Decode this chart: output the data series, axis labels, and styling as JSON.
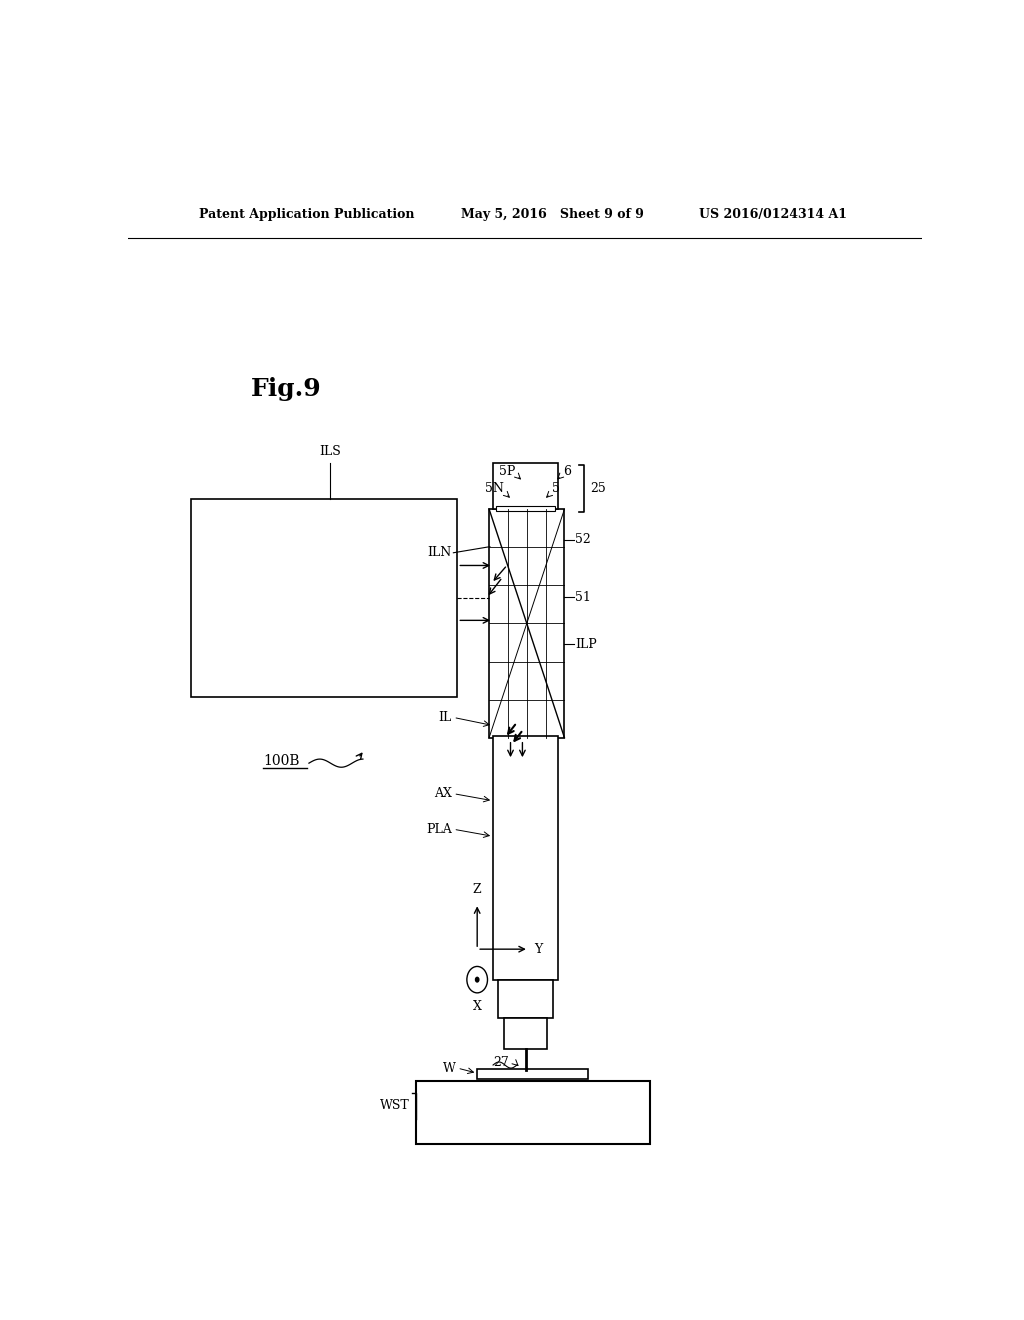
{
  "bg_color": "#ffffff",
  "header_left": "Patent Application Publication",
  "header_mid": "May 5, 2016   Sheet 9 of 9",
  "header_right": "US 2016/0124314 A1",
  "fig_label": "Fig.9",
  "black": "#000000",
  "gray": "#555555"
}
